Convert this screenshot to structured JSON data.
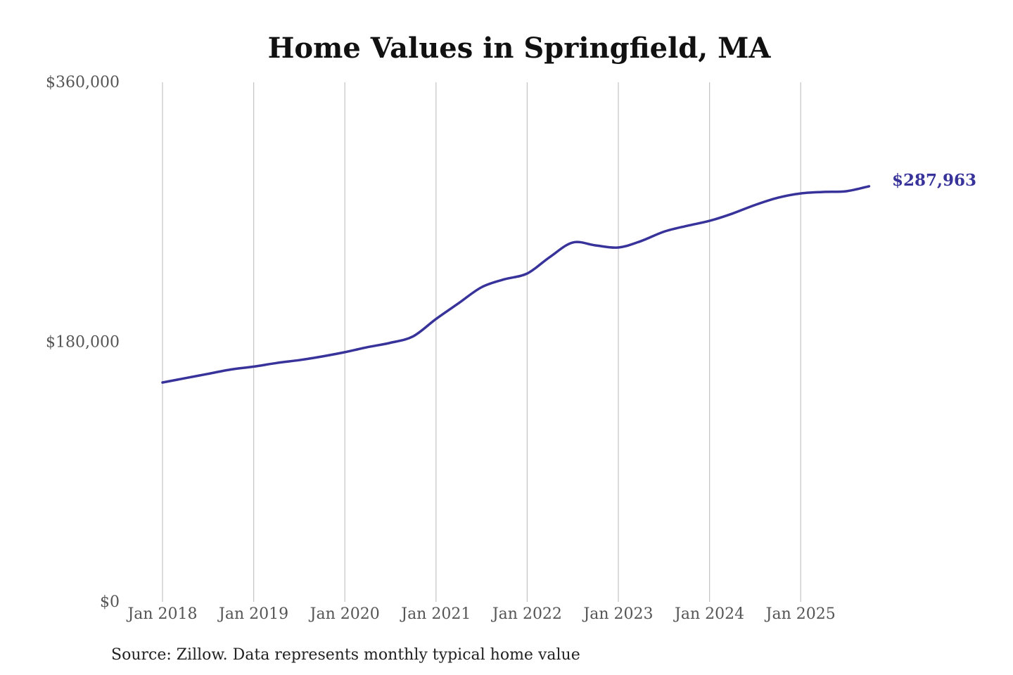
{
  "chart_data": {
    "type": "line",
    "title": "Home Values in Springfield, MA",
    "source": "Source: Zillow. Data represents monthly typical home value",
    "xlabel": "",
    "ylabel": "",
    "ylim": [
      0,
      360000
    ],
    "y_ticks": [
      {
        "value": 0,
        "label": "$0"
      },
      {
        "value": 180000,
        "label": "$180,000"
      },
      {
        "value": 360000,
        "label": "$360,000"
      }
    ],
    "x_ticks": [
      {
        "value": "2018-01",
        "label": "Jan 2018"
      },
      {
        "value": "2019-01",
        "label": "Jan 2019"
      },
      {
        "value": "2020-01",
        "label": "Jan 2020"
      },
      {
        "value": "2021-01",
        "label": "Jan 2021"
      },
      {
        "value": "2022-01",
        "label": "Jan 2022"
      },
      {
        "value": "2023-01",
        "label": "Jan 2023"
      },
      {
        "value": "2024-01",
        "label": "Jan 2024"
      },
      {
        "value": "2025-01",
        "label": "Jan 2025"
      }
    ],
    "xlim": [
      "2018-01",
      "2025-10"
    ],
    "grid": {
      "x": true,
      "y": false
    },
    "series": [
      {
        "color": "#37339a",
        "end_label": "$287,963",
        "points": [
          {
            "x": "2018-01",
            "y": 152000
          },
          {
            "x": "2018-04",
            "y": 155000
          },
          {
            "x": "2018-07",
            "y": 158000
          },
          {
            "x": "2018-10",
            "y": 161000
          },
          {
            "x": "2019-01",
            "y": 163000
          },
          {
            "x": "2019-04",
            "y": 165500
          },
          {
            "x": "2019-07",
            "y": 167500
          },
          {
            "x": "2019-10",
            "y": 170000
          },
          {
            "x": "2020-01",
            "y": 173000
          },
          {
            "x": "2020-04",
            "y": 176500
          },
          {
            "x": "2020-07",
            "y": 179500
          },
          {
            "x": "2020-10",
            "y": 184000
          },
          {
            "x": "2021-01",
            "y": 196000
          },
          {
            "x": "2021-04",
            "y": 207000
          },
          {
            "x": "2021-07",
            "y": 218000
          },
          {
            "x": "2021-10",
            "y": 223500
          },
          {
            "x": "2022-01",
            "y": 227500
          },
          {
            "x": "2022-04",
            "y": 239000
          },
          {
            "x": "2022-07",
            "y": 249000
          },
          {
            "x": "2022-10",
            "y": 247000
          },
          {
            "x": "2023-01",
            "y": 245500
          },
          {
            "x": "2023-04",
            "y": 250000
          },
          {
            "x": "2023-07",
            "y": 256500
          },
          {
            "x": "2023-10",
            "y": 260500
          },
          {
            "x": "2024-01",
            "y": 264000
          },
          {
            "x": "2024-04",
            "y": 269000
          },
          {
            "x": "2024-07",
            "y": 275000
          },
          {
            "x": "2024-10",
            "y": 280000
          },
          {
            "x": "2025-01",
            "y": 283000
          },
          {
            "x": "2025-04",
            "y": 284000
          },
          {
            "x": "2025-07",
            "y": 284500
          },
          {
            "x": "2025-10",
            "y": 287963
          }
        ]
      }
    ]
  }
}
